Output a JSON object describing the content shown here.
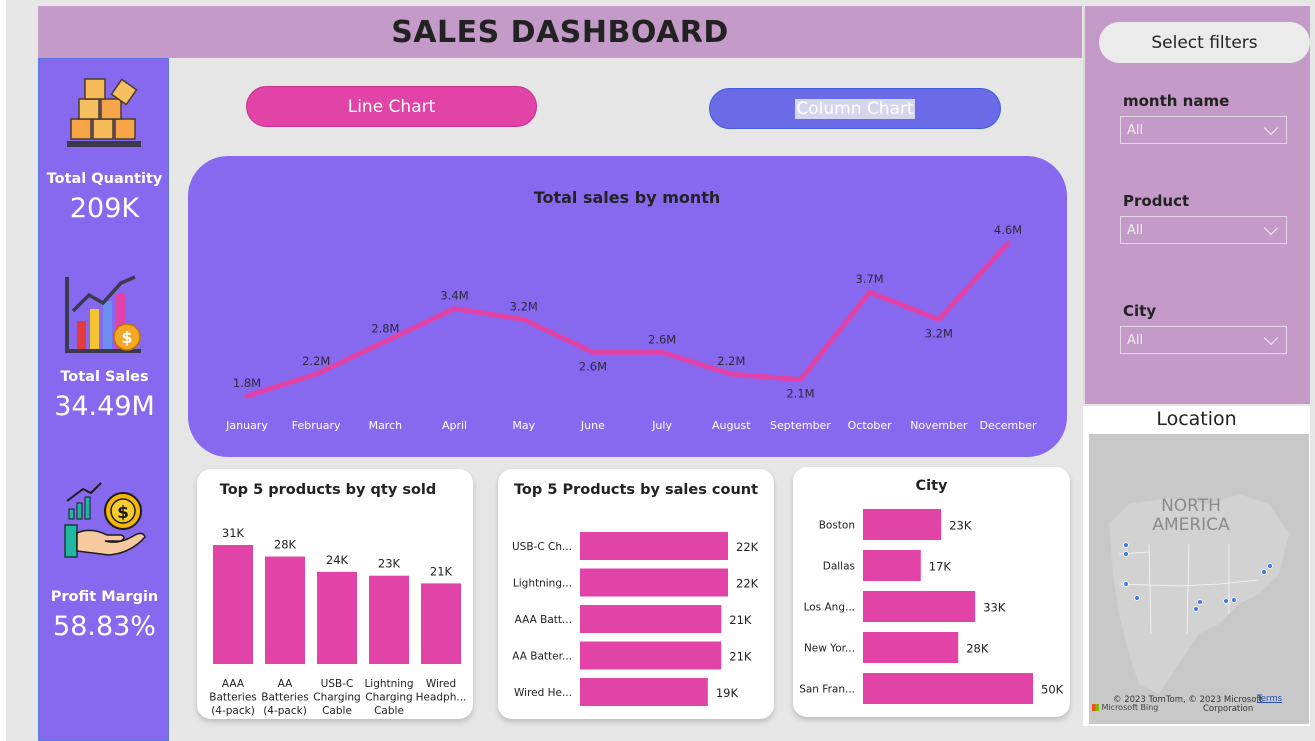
{
  "header": {
    "title": "SALES DASHBOARD"
  },
  "kpis": [
    {
      "label": "Total Quantity",
      "value": "209K",
      "icon": "boxes-icon"
    },
    {
      "label": "Total Sales",
      "value": "34.49M",
      "icon": "sales-chart-icon"
    },
    {
      "label": "Profit Margin",
      "value": "58.83%",
      "icon": "money-hand-icon"
    }
  ],
  "buttons": {
    "line_chart": "Line Chart",
    "column_chart": "Column Chart"
  },
  "filters": {
    "title": "Select filters",
    "items": [
      {
        "label": "month name",
        "value": "All"
      },
      {
        "label": "Product",
        "value": "All"
      },
      {
        "label": "City",
        "value": "All"
      }
    ]
  },
  "map": {
    "title": "Location",
    "region_label_1": "NORTH",
    "region_label_2": "AMERICA",
    "credit_1": "© 2023 TomTom, © 2023 Microsoft",
    "credit_2": "Corporation",
    "terms": "Terms",
    "brand": "Microsoft Bing"
  },
  "colors": {
    "accent_pink": "#e243a7",
    "panel_purple": "#8769f0",
    "filter_lilac": "#c49ac8"
  },
  "chart_data": [
    {
      "type": "line",
      "title": "Total sales by month",
      "categories": [
        "January",
        "February",
        "March",
        "April",
        "May",
        "June",
        "July",
        "August",
        "September",
        "October",
        "November",
        "December"
      ],
      "values": [
        1.8,
        2.2,
        2.8,
        3.4,
        3.2,
        2.6,
        2.6,
        2.2,
        2.1,
        3.7,
        3.2,
        4.6
      ],
      "data_labels": [
        "1.8M",
        "2.2M",
        "2.8M",
        "3.4M",
        "3.2M",
        "2.6M",
        "2.6M",
        "2.2M",
        "2.1M",
        "3.7M",
        "3.2M",
        "4.6M"
      ],
      "ylim": [
        1.8,
        4.6
      ]
    },
    {
      "type": "bar",
      "title": "Top 5 products by qty sold",
      "categories": [
        "AAA Batteries (4-pack)",
        "AA Batteries (4-pack)",
        "USB-C Charging Cable",
        "Lightning Charging Cable",
        "Wired Headph..."
      ],
      "values": [
        31,
        28,
        24,
        23,
        21
      ],
      "data_labels": [
        "31K",
        "28K",
        "24K",
        "23K",
        "21K"
      ],
      "ylim": [
        0,
        31
      ]
    },
    {
      "type": "bar",
      "orientation": "horizontal",
      "title": "Top 5 Products by sales count",
      "categories": [
        "USB-C Ch...",
        "Lightning...",
        "AAA Batt...",
        "AA Batter...",
        "Wired He..."
      ],
      "values": [
        22,
        22,
        21,
        21,
        19
      ],
      "data_labels": [
        "22K",
        "22K",
        "21K",
        "21K",
        "19K"
      ],
      "xlim": [
        0,
        22
      ]
    },
    {
      "type": "bar",
      "orientation": "horizontal",
      "title": "City",
      "categories": [
        "Boston",
        "Dallas",
        "Los Ang...",
        "New Yor...",
        "San Fran..."
      ],
      "values": [
        23,
        17,
        33,
        28,
        50
      ],
      "data_labels": [
        "23K",
        "17K",
        "33K",
        "28K",
        "50K"
      ],
      "xlim": [
        0,
        50
      ]
    }
  ]
}
